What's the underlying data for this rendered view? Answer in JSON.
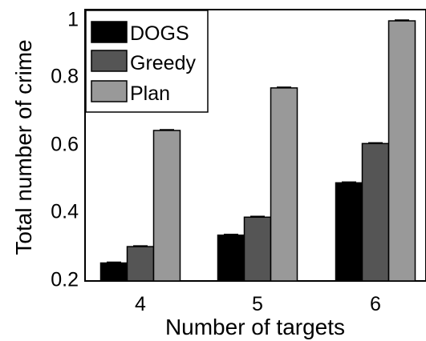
{
  "chart_data": {
    "type": "bar",
    "title": "",
    "xlabel": "Number of targets",
    "ylabel": "Total number of crime",
    "categories": [
      "4",
      "5",
      "6"
    ],
    "ylim": [
      0.2,
      1.0
    ],
    "yticks": [
      "0.2",
      "0.4",
      "0.6",
      "0.8",
      "1"
    ],
    "legend_position": "top-left",
    "grid": false,
    "series": [
      {
        "name": "DOGS",
        "color": "#000000",
        "values": [
          0.255,
          0.34,
          0.5
        ]
      },
      {
        "name": "Greedy",
        "color": "#555555",
        "values": [
          0.305,
          0.395,
          0.62
        ]
      },
      {
        "name": "Plan",
        "color": "#999999",
        "values": [
          0.66,
          0.79,
          0.995
        ]
      }
    ]
  }
}
